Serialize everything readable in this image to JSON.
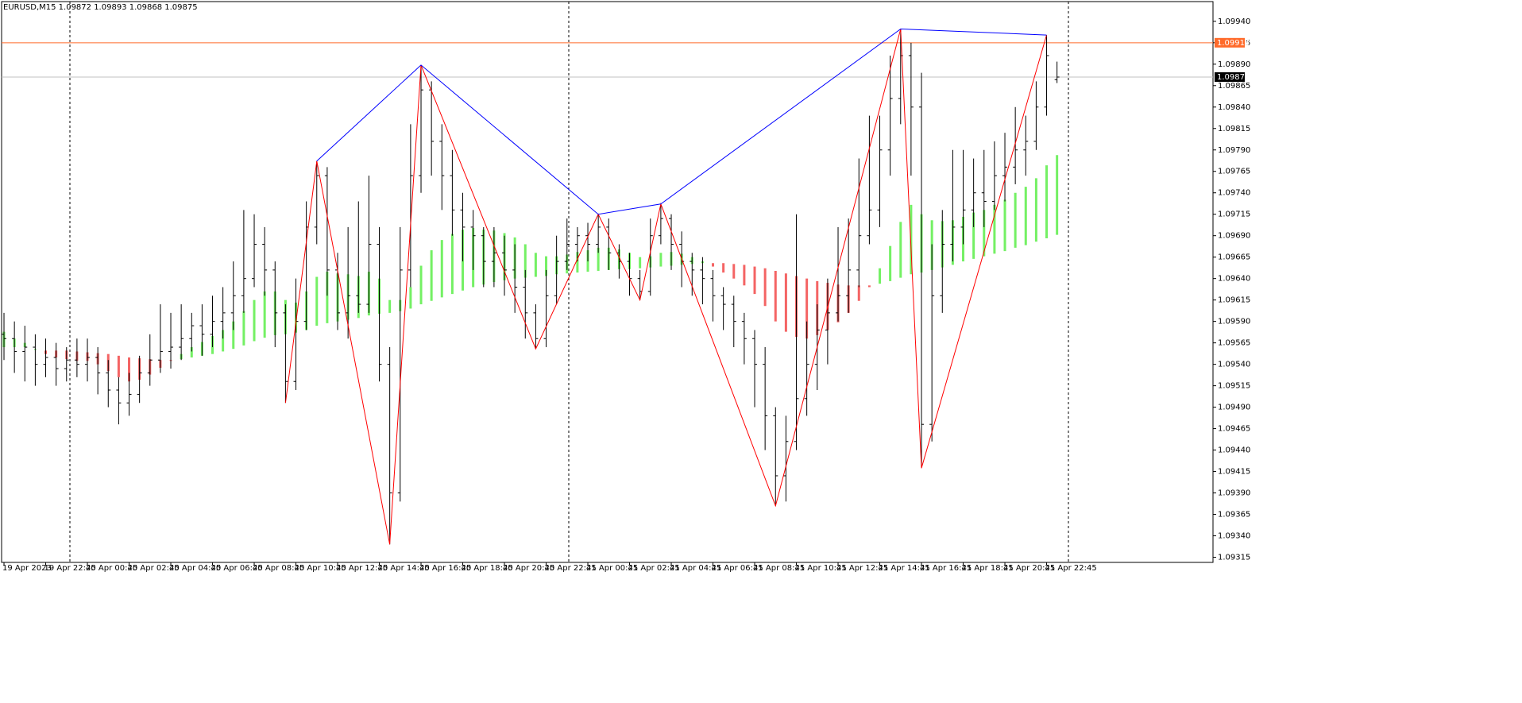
{
  "chart_data": {
    "type": "ohlc",
    "title": "EURUSD,M15  1.09872 1.09893 1.09868 1.09875",
    "bar_color": "#000000",
    "xlim": [
      -0.23,
      115.96
    ],
    "ylim": [
      1.09309,
      1.09963
    ],
    "xticks": [
      {
        "value": 0,
        "label": "19 Apr 2023"
      },
      {
        "value": 4,
        "label": "19 Apr 22:45"
      },
      {
        "value": 8,
        "label": "20 Apr 00:45"
      },
      {
        "value": 12,
        "label": "20 Apr 02:45"
      },
      {
        "value": 16,
        "label": "20 Apr 04:45"
      },
      {
        "value": 20,
        "label": "20 Apr 06:45"
      },
      {
        "value": 24,
        "label": "20 Apr 08:45"
      },
      {
        "value": 28,
        "label": "20 Apr 10:45"
      },
      {
        "value": 32,
        "label": "20 Apr 12:45"
      },
      {
        "value": 36,
        "label": "20 Apr 14:45"
      },
      {
        "value": 40,
        "label": "20 Apr 16:45"
      },
      {
        "value": 44,
        "label": "20 Apr 18:45"
      },
      {
        "value": 48,
        "label": "20 Apr 20:45"
      },
      {
        "value": 52,
        "label": "20 Apr 22:45"
      },
      {
        "value": 56,
        "label": "21 Apr 00:45"
      },
      {
        "value": 60,
        "label": "21 Apr 02:45"
      },
      {
        "value": 64,
        "label": "21 Apr 04:45"
      },
      {
        "value": 68,
        "label": "21 Apr 06:45"
      },
      {
        "value": 72,
        "label": "21 Apr 08:45"
      },
      {
        "value": 76,
        "label": "21 Apr 10:45"
      },
      {
        "value": 80,
        "label": "21 Apr 12:45"
      },
      {
        "value": 84,
        "label": "21 Apr 14:45"
      },
      {
        "value": 88,
        "label": "21 Apr 16:45"
      },
      {
        "value": 92,
        "label": "21 Apr 18:45"
      },
      {
        "value": 96,
        "label": "21 Apr 20:45"
      },
      {
        "value": 100,
        "label": "21 Apr 22:45"
      }
    ],
    "yticks": [
      1.09315,
      {
        "value": 1.0934,
        "label": "1.09340"
      },
      1.09365,
      {
        "value": 1.0939,
        "label": "1.09390"
      },
      1.09415,
      {
        "value": 1.0944,
        "label": "1.09440"
      },
      1.09465,
      {
        "value": 1.0949,
        "label": "1.09490"
      },
      1.09515,
      {
        "value": 1.0954,
        "label": "1.09540"
      },
      1.09565,
      {
        "value": 1.0959,
        "label": "1.09590"
      },
      1.09615,
      {
        "value": 1.0964,
        "label": "1.09640"
      },
      1.09665,
      {
        "value": 1.0969,
        "label": "1.09690"
      },
      1.09715,
      {
        "value": 1.0974,
        "label": "1.09740"
      },
      1.09765,
      {
        "value": 1.0979,
        "label": "1.09790"
      },
      1.09815,
      {
        "value": 1.0984,
        "label": "1.09840"
      },
      1.09865,
      {
        "value": 1.0989,
        "label": "1.09890"
      },
      1.09915,
      {
        "value": 1.0994,
        "label": "1.09940"
      }
    ],
    "open": [
      1.09575,
      1.0957,
      1.09555,
      1.0956,
      1.0954,
      1.09548,
      1.09535,
      1.09545,
      1.0954,
      1.09548,
      1.0953,
      1.0951,
      1.09495,
      1.09505,
      1.0953,
      1.09545,
      1.09555,
      1.0956,
      1.0957,
      1.09585,
      1.09575,
      1.0959,
      1.096,
      1.0962,
      1.0964,
      1.0968,
      1.0965,
      1.096,
      1.0952,
      1.0959,
      1.097,
      1.0976,
      1.0965,
      1.096,
      1.0962,
      1.0961,
      1.0968,
      1.0954,
      1.0939,
      1.0965,
      1.0976,
      1.0986,
      1.098,
      1.0976,
      1.0972,
      1.097,
      1.0969,
      1.0966,
      1.0967,
      1.0965,
      1.0963,
      1.096,
      1.0957,
      1.0962,
      1.0966,
      1.0968,
      1.0969,
      1.0968,
      1.097,
      1.0967,
      1.0966,
      1.0964,
      1.09625,
      1.0969,
      1.0971,
      1.0968,
      1.0966,
      1.0965,
      1.0964,
      1.0962,
      1.0961,
      1.0959,
      1.0957,
      1.0954,
      1.0948,
      1.0941,
      1.0945,
      1.095,
      1.0954,
      1.0958,
      1.096,
      1.0962,
      1.0965,
      1.0969,
      1.0972,
      1.0979,
      1.0985,
      1.099,
      1.0984,
      1.0947,
      1.0962,
      1.0968,
      1.097,
      1.0972,
      1.0974,
      1.0973,
      1.0976,
      1.0977,
      1.0979,
      1.098,
      1.0984,
      1.09872
    ],
    "high": [
      1.096,
      1.0959,
      1.09585,
      1.09575,
      1.0957,
      1.09565,
      1.0956,
      1.0957,
      1.0957,
      1.0956,
      1.09545,
      1.09525,
      1.0953,
      1.0955,
      1.09575,
      1.0961,
      1.096,
      1.0961,
      1.096,
      1.0961,
      1.0962,
      1.0963,
      1.0966,
      1.0972,
      1.09715,
      1.097,
      1.0966,
      1.0961,
      1.0964,
      1.0973,
      1.09777,
      1.0977,
      1.0967,
      1.097,
      1.0973,
      1.0976,
      1.097,
      1.0956,
      1.097,
      1.0982,
      1.09889,
      1.0987,
      1.0982,
      1.0979,
      1.0974,
      1.0972,
      1.097,
      1.097,
      1.0969,
      1.0968,
      1.0965,
      1.0961,
      1.0965,
      1.0969,
      1.0971,
      1.097,
      1.09705,
      1.09715,
      1.0971,
      1.0968,
      1.0967,
      1.0965,
      1.0971,
      1.09727,
      1.09715,
      1.09695,
      1.0967,
      1.09665,
      1.0965,
      1.0963,
      1.0962,
      1.096,
      1.0958,
      1.0956,
      1.0949,
      1.0948,
      1.09715,
      1.0959,
      1.0961,
      1.0964,
      1.097,
      1.0971,
      1.0978,
      1.0983,
      1.0983,
      1.099,
      1.09931,
      1.09915,
      1.0988,
      1.0968,
      1.0972,
      1.0979,
      1.0979,
      1.0978,
      1.0979,
      1.098,
      1.0981,
      1.0984,
      1.0983,
      1.0987,
      1.09924,
      1.09893
    ],
    "low": [
      1.09545,
      1.0953,
      1.0952,
      1.09515,
      1.09525,
      1.09515,
      1.0952,
      1.09525,
      1.0952,
      1.09505,
      1.0949,
      1.0947,
      1.0948,
      1.09495,
      1.09515,
      1.0953,
      1.09535,
      1.09545,
      1.09555,
      1.0955,
      1.0956,
      1.0957,
      1.0958,
      1.096,
      1.0963,
      1.0962,
      1.0956,
      1.09495,
      1.0951,
      1.0958,
      1.0968,
      1.0962,
      1.0958,
      1.0957,
      1.096,
      1.096,
      1.0952,
      1.0933,
      1.0938,
      1.0963,
      1.0974,
      1.0976,
      1.0972,
      1.0969,
      1.0966,
      1.0965,
      1.0963,
      1.0963,
      1.0962,
      1.096,
      1.0957,
      1.09558,
      1.0956,
      1.0961,
      1.0965,
      1.0966,
      1.0966,
      1.0967,
      1.0965,
      1.0964,
      1.0962,
      1.09615,
      1.0962,
      1.0968,
      1.0965,
      1.0963,
      1.0962,
      1.0961,
      1.0959,
      1.0958,
      1.0956,
      1.0954,
      1.0949,
      1.0944,
      1.09375,
      1.0938,
      1.0944,
      1.0948,
      1.0951,
      1.0954,
      1.0959,
      1.096,
      1.0963,
      1.0968,
      1.097,
      1.0976,
      1.0982,
      1.0976,
      1.09419,
      1.0945,
      1.096,
      1.0966,
      1.0968,
      1.097,
      1.097,
      1.0972,
      1.0973,
      1.0975,
      1.0976,
      1.0979,
      1.0983,
      1.09868
    ],
    "close": [
      1.0957,
      1.09555,
      1.0956,
      1.0954,
      1.09548,
      1.09535,
      1.09545,
      1.0954,
      1.09548,
      1.0953,
      1.0951,
      1.09495,
      1.09505,
      1.0953,
      1.09545,
      1.09555,
      1.0956,
      1.0957,
      1.09585,
      1.09575,
      1.0959,
      1.096,
      1.0962,
      1.0964,
      1.0968,
      1.0965,
      1.096,
      1.0952,
      1.0959,
      1.097,
      1.0976,
      1.0965,
      1.096,
      1.0962,
      1.0961,
      1.0968,
      1.0954,
      1.0939,
      1.0965,
      1.0976,
      1.0986,
      1.098,
      1.0976,
      1.0972,
      1.097,
      1.0969,
      1.0966,
      1.0967,
      1.0965,
      1.0963,
      1.096,
      1.0957,
      1.0962,
      1.0966,
      1.0968,
      1.0969,
      1.0968,
      1.097,
      1.0967,
      1.0966,
      1.0964,
      1.09625,
      1.0969,
      1.0971,
      1.0968,
      1.0966,
      1.0965,
      1.0964,
      1.0962,
      1.0961,
      1.0959,
      1.0957,
      1.0954,
      1.0948,
      1.0941,
      1.0945,
      1.095,
      1.0954,
      1.0958,
      1.096,
      1.0962,
      1.0965,
      1.0969,
      1.0972,
      1.0979,
      1.0985,
      1.099,
      1.0984,
      1.0947,
      1.0962,
      1.0968,
      1.097,
      1.0972,
      1.0974,
      1.0973,
      1.0976,
      1.0977,
      1.0979,
      1.098,
      1.0984,
      1.099,
      1.09875
    ],
    "band": {
      "up_color": "#74f064",
      "down_color": "#f46464",
      "fast": [
        1.09578,
        1.0957,
        1.09565,
        1.09558,
        1.09552,
        1.09548,
        1.09546,
        1.09544,
        1.09544,
        1.0954,
        1.09532,
        1.09525,
        1.0952,
        1.09522,
        1.09528,
        1.09536,
        1.09544,
        1.09552,
        1.0956,
        1.09566,
        1.09573,
        1.0958,
        1.0959,
        1.09602,
        1.09615,
        1.09625,
        1.09625,
        1.09615,
        1.09612,
        1.09625,
        1.09642,
        1.09648,
        1.09646,
        1.09645,
        1.09643,
        1.09648,
        1.0964,
        1.09615,
        1.09615,
        1.0963,
        1.09655,
        1.09673,
        1.09685,
        1.09692,
        1.09697,
        1.09699,
        1.09697,
        1.09696,
        1.09693,
        1.09688,
        1.0968,
        1.0967,
        1.09666,
        1.09666,
        1.09668,
        1.09671,
        1.09673,
        1.09676,
        1.09676,
        1.09674,
        1.0967,
        1.09665,
        1.09666,
        1.0967,
        1.09671,
        1.09669,
        1.09665,
        1.0966,
        1.09654,
        1.09647,
        1.0964,
        1.09632,
        1.09622,
        1.09608,
        1.0959,
        1.09578,
        1.09572,
        1.0957,
        1.09574,
        1.0958,
        1.09589,
        1.096,
        1.09614,
        1.0963,
        1.09652,
        1.09678,
        1.09706,
        1.09726,
        1.09715,
        1.09708,
        1.09707,
        1.09708,
        1.09712,
        1.09717,
        1.0972,
        1.09726,
        1.09732,
        1.0974,
        1.09747,
        1.09757,
        1.09772,
        1.09784
      ],
      "slow": [
        1.0956,
        1.0956,
        1.0956,
        1.09557,
        1.09556,
        1.09556,
        1.09556,
        1.09555,
        1.09554,
        1.09553,
        1.09552,
        1.0955,
        1.09548,
        1.09547,
        1.09546,
        1.09545,
        1.09545,
        1.09546,
        1.09548,
        1.0955,
        1.09552,
        1.09555,
        1.09558,
        1.09562,
        1.09567,
        1.09571,
        1.09574,
        1.09575,
        1.09577,
        1.0958,
        1.09585,
        1.09588,
        1.0959,
        1.09592,
        1.09594,
        1.09597,
        1.09599,
        1.096,
        1.09602,
        1.09605,
        1.0961,
        1.09614,
        1.09618,
        1.09622,
        1.09626,
        1.0963,
        1.09633,
        1.09636,
        1.09638,
        1.0964,
        1.09641,
        1.09642,
        1.09643,
        1.09645,
        1.09646,
        1.09647,
        1.09648,
        1.09649,
        1.0965,
        1.09651,
        1.09651,
        1.09652,
        1.09653,
        1.09654,
        1.09655,
        1.09656,
        1.09657,
        1.09658,
        1.09658,
        1.09658,
        1.09657,
        1.09656,
        1.09654,
        1.09652,
        1.09649,
        1.09646,
        1.09643,
        1.0964,
        1.09637,
        1.09635,
        1.09633,
        1.09632,
        1.09632,
        1.09632,
        1.09634,
        1.09637,
        1.09641,
        1.09645,
        1.09647,
        1.0965,
        1.09653,
        1.09656,
        1.0966,
        1.09663,
        1.09666,
        1.09669,
        1.09672,
        1.09676,
        1.09679,
        1.09683,
        1.09687,
        1.09691
      ]
    },
    "lines": [
      {
        "color": "#ff0000",
        "x": [
          27,
          30,
          37,
          40,
          51,
          57,
          61,
          63,
          74,
          86,
          88,
          100
        ],
        "values": [
          1.09495,
          1.09777,
          1.0933,
          1.09889,
          1.09558,
          1.09715,
          1.09615,
          1.09727,
          1.09375,
          1.09931,
          1.09419,
          1.09924
        ]
      },
      {
        "color": "#0000ff",
        "x": [
          30,
          40,
          57,
          63,
          86,
          100
        ],
        "values": [
          1.09777,
          1.09889,
          1.09715,
          1.09727,
          1.09931,
          1.09924
        ]
      }
    ],
    "hlines": [
      {
        "value": 1.09915,
        "label": "1.09915",
        "color": "#ff6a2a",
        "label_bg": "#ff6a2a"
      },
      {
        "value": 1.09875,
        "label": "1.09875",
        "color": "#c0c0c0",
        "label_bg": "#000000"
      }
    ]
  }
}
